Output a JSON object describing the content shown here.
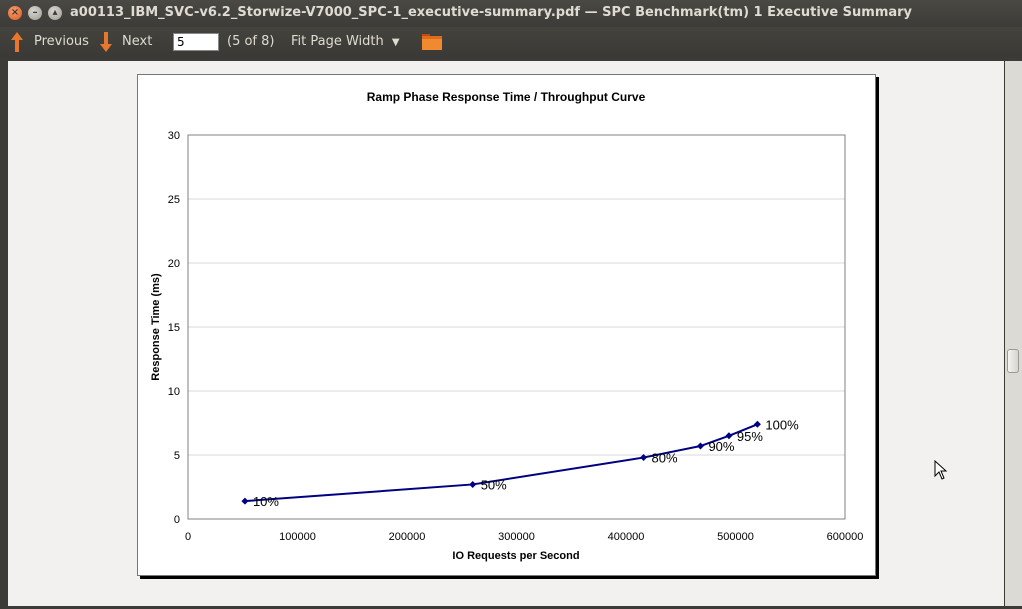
{
  "window": {
    "title": "a00113_IBM_SVC-v6.2_Storwize-V7000_SPC-1_executive-summary.pdf — SPC Benchmark(tm) 1 Executive Summary"
  },
  "toolbar": {
    "previous_label": "Previous",
    "next_label": "Next",
    "page_value": "5",
    "page_count": "(5 of 8)",
    "zoom_label": "Fit Page Width"
  },
  "colors": {
    "series": "#000080",
    "orange_arrow": "#e8762c"
  },
  "chart_data": {
    "type": "line",
    "title": "Ramp Phase Response Time / Throughput Curve",
    "xlabel": "IO Requests per Second",
    "ylabel": "Response Time (ms)",
    "xlim": [
      0,
      600000
    ],
    "ylim": [
      0,
      30
    ],
    "xticks": [
      "0",
      "100000",
      "200000",
      "300000",
      "400000",
      "500000",
      "600000"
    ],
    "yticks": [
      "0",
      "5",
      "10",
      "15",
      "20",
      "25",
      "30"
    ],
    "grid": true,
    "points": [
      {
        "x": 52000,
        "y": 1.4,
        "label": "10%"
      },
      {
        "x": 260000,
        "y": 2.7,
        "label": "50%"
      },
      {
        "x": 416000,
        "y": 4.8,
        "label": "80%"
      },
      {
        "x": 468000,
        "y": 5.7,
        "label": "90%"
      },
      {
        "x": 494000,
        "y": 6.5,
        "label": "95%"
      },
      {
        "x": 520000,
        "y": 7.4,
        "label": "100%"
      }
    ]
  }
}
